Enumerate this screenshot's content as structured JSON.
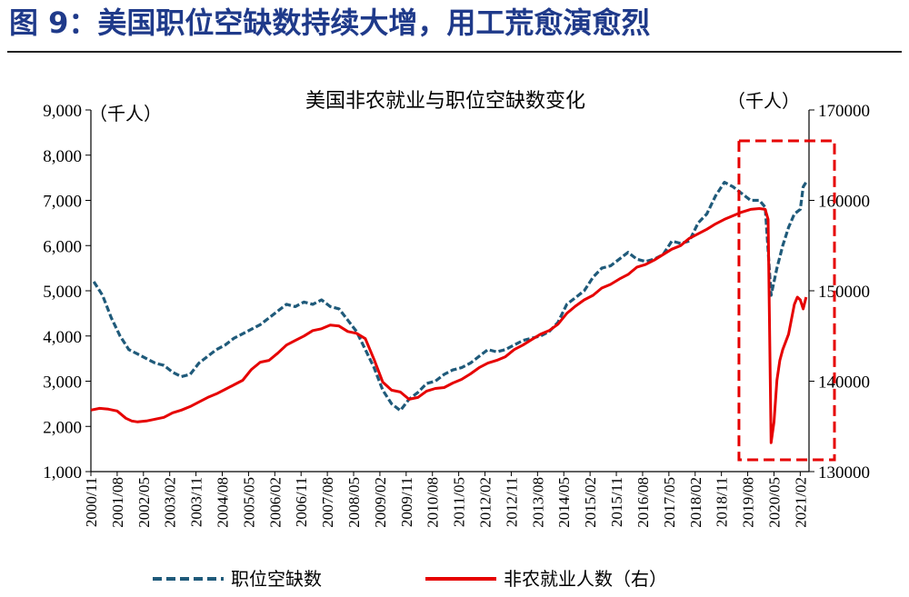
{
  "figure_title": "图 9：美国职位空缺数持续大增，用工荒愈演愈烈",
  "chart_data": {
    "type": "line",
    "title": "美国非农就业与职位空缺数变化",
    "left_unit": "（千人）",
    "right_unit": "（千人）",
    "left_axis": {
      "min": 1000,
      "max": 9000,
      "ticks": [
        "1,000",
        "2,000",
        "3,000",
        "4,000",
        "5,000",
        "6,000",
        "7,000",
        "8,000",
        "9,000"
      ]
    },
    "right_axis": {
      "min": 130000,
      "max": 170000,
      "ticks": [
        "130000",
        "140000",
        "150000",
        "160000",
        "170000"
      ]
    },
    "x_range": [
      "2000-11",
      "2021-05"
    ],
    "x_ticks": [
      "2000/11",
      "2001/08",
      "2002/05",
      "2003/02",
      "2003/11",
      "2004/08",
      "2005/05",
      "2006/02",
      "2006/11",
      "2007/08",
      "2008/05",
      "2009/02",
      "2009/11",
      "2010/08",
      "2011/05",
      "2012/02",
      "2012/11",
      "2013/08",
      "2014/05",
      "2015/02",
      "2015/11",
      "2016/08",
      "2017/05",
      "2018/02",
      "2018/11",
      "2019/08",
      "2020/05",
      "2021/02"
    ],
    "series": [
      {
        "name": "职位空缺数",
        "axis": "left",
        "style": "dashed",
        "color": "#1f5a7a",
        "points": [
          [
            "2000-12",
            5200
          ],
          [
            "2001-03",
            4900
          ],
          [
            "2001-06",
            4400
          ],
          [
            "2001-09",
            4000
          ],
          [
            "2001-12",
            3700
          ],
          [
            "2002-03",
            3600
          ],
          [
            "2002-06",
            3500
          ],
          [
            "2002-09",
            3400
          ],
          [
            "2002-12",
            3350
          ],
          [
            "2003-03",
            3200
          ],
          [
            "2003-06",
            3100
          ],
          [
            "2003-09",
            3150
          ],
          [
            "2003-12",
            3400
          ],
          [
            "2004-03",
            3550
          ],
          [
            "2004-06",
            3700
          ],
          [
            "2004-09",
            3800
          ],
          [
            "2004-12",
            3950
          ],
          [
            "2005-03",
            4050
          ],
          [
            "2005-06",
            4150
          ],
          [
            "2005-09",
            4250
          ],
          [
            "2005-12",
            4400
          ],
          [
            "2006-03",
            4550
          ],
          [
            "2006-06",
            4700
          ],
          [
            "2006-09",
            4650
          ],
          [
            "2006-12",
            4750
          ],
          [
            "2007-03",
            4700
          ],
          [
            "2007-06",
            4800
          ],
          [
            "2007-09",
            4650
          ],
          [
            "2007-12",
            4600
          ],
          [
            "2008-03",
            4350
          ],
          [
            "2008-06",
            4100
          ],
          [
            "2008-09",
            3700
          ],
          [
            "2008-12",
            3300
          ],
          [
            "2009-03",
            2800
          ],
          [
            "2009-06",
            2500
          ],
          [
            "2009-09",
            2350
          ],
          [
            "2009-12",
            2600
          ],
          [
            "2010-03",
            2750
          ],
          [
            "2010-06",
            2950
          ],
          [
            "2010-09",
            3000
          ],
          [
            "2010-12",
            3150
          ],
          [
            "2011-03",
            3250
          ],
          [
            "2011-06",
            3300
          ],
          [
            "2011-09",
            3400
          ],
          [
            "2011-12",
            3550
          ],
          [
            "2012-03",
            3700
          ],
          [
            "2012-06",
            3650
          ],
          [
            "2012-09",
            3700
          ],
          [
            "2012-12",
            3800
          ],
          [
            "2013-03",
            3900
          ],
          [
            "2013-06",
            3950
          ],
          [
            "2013-09",
            4000
          ],
          [
            "2013-12",
            4100
          ],
          [
            "2014-03",
            4300
          ],
          [
            "2014-06",
            4700
          ],
          [
            "2014-09",
            4850
          ],
          [
            "2014-12",
            5000
          ],
          [
            "2015-03",
            5300
          ],
          [
            "2015-06",
            5500
          ],
          [
            "2015-09",
            5550
          ],
          [
            "2015-12",
            5700
          ],
          [
            "2016-03",
            5850
          ],
          [
            "2016-06",
            5700
          ],
          [
            "2016-09",
            5650
          ],
          [
            "2016-12",
            5700
          ],
          [
            "2017-03",
            5800
          ],
          [
            "2017-06",
            6100
          ],
          [
            "2017-09",
            6050
          ],
          [
            "2017-12",
            6100
          ],
          [
            "2018-03",
            6500
          ],
          [
            "2018-06",
            6700
          ],
          [
            "2018-09",
            7100
          ],
          [
            "2018-12",
            7400
          ],
          [
            "2019-03",
            7300
          ],
          [
            "2019-06",
            7150
          ],
          [
            "2019-09",
            7000
          ],
          [
            "2019-12",
            7000
          ],
          [
            "2020-02",
            6850
          ],
          [
            "2020-04",
            4900
          ],
          [
            "2020-06",
            5500
          ],
          [
            "2020-08",
            6000
          ],
          [
            "2020-10",
            6400
          ],
          [
            "2020-12",
            6700
          ],
          [
            "2021-02",
            6800
          ],
          [
            "2021-03",
            7300
          ],
          [
            "2021-04",
            7400
          ]
        ]
      },
      {
        "name": "非农就业人数（右）",
        "axis": "right",
        "style": "solid",
        "color": "#e60000",
        "points": [
          [
            "2000-11",
            136800
          ],
          [
            "2001-02",
            137000
          ],
          [
            "2001-05",
            136900
          ],
          [
            "2001-08",
            136700
          ],
          [
            "2001-11",
            135900
          ],
          [
            "2002-01",
            135600
          ],
          [
            "2002-03",
            135500
          ],
          [
            "2002-06",
            135600
          ],
          [
            "2002-09",
            135800
          ],
          [
            "2002-12",
            136000
          ],
          [
            "2003-03",
            136500
          ],
          [
            "2003-06",
            136800
          ],
          [
            "2003-09",
            137200
          ],
          [
            "2003-12",
            137700
          ],
          [
            "2004-03",
            138200
          ],
          [
            "2004-06",
            138600
          ],
          [
            "2004-09",
            139100
          ],
          [
            "2004-12",
            139600
          ],
          [
            "2005-03",
            140100
          ],
          [
            "2005-06",
            141300
          ],
          [
            "2005-09",
            142100
          ],
          [
            "2005-12",
            142300
          ],
          [
            "2006-03",
            143100
          ],
          [
            "2006-06",
            144000
          ],
          [
            "2006-09",
            144500
          ],
          [
            "2006-12",
            145000
          ],
          [
            "2007-03",
            145600
          ],
          [
            "2007-06",
            145800
          ],
          [
            "2007-09",
            146200
          ],
          [
            "2007-12",
            146100
          ],
          [
            "2008-03",
            145500
          ],
          [
            "2008-06",
            145300
          ],
          [
            "2008-09",
            144700
          ],
          [
            "2008-12",
            142400
          ],
          [
            "2009-03",
            139900
          ],
          [
            "2009-06",
            139000
          ],
          [
            "2009-09",
            138800
          ],
          [
            "2009-12",
            138000
          ],
          [
            "2010-03",
            138200
          ],
          [
            "2010-06",
            138900
          ],
          [
            "2010-09",
            139200
          ],
          [
            "2010-12",
            139300
          ],
          [
            "2011-03",
            139800
          ],
          [
            "2011-06",
            140200
          ],
          [
            "2011-09",
            140800
          ],
          [
            "2011-12",
            141500
          ],
          [
            "2012-03",
            142000
          ],
          [
            "2012-06",
            142300
          ],
          [
            "2012-09",
            142700
          ],
          [
            "2012-12",
            143500
          ],
          [
            "2013-03",
            144000
          ],
          [
            "2013-06",
            144600
          ],
          [
            "2013-09",
            145200
          ],
          [
            "2013-12",
            145600
          ],
          [
            "2014-03",
            146300
          ],
          [
            "2014-06",
            147500
          ],
          [
            "2014-09",
            148300
          ],
          [
            "2014-12",
            149000
          ],
          [
            "2015-03",
            149500
          ],
          [
            "2015-06",
            150300
          ],
          [
            "2015-09",
            150700
          ],
          [
            "2015-12",
            151300
          ],
          [
            "2016-03",
            151800
          ],
          [
            "2016-06",
            152600
          ],
          [
            "2016-09",
            152900
          ],
          [
            "2016-12",
            153400
          ],
          [
            "2017-03",
            154000
          ],
          [
            "2017-06",
            154600
          ],
          [
            "2017-09",
            155000
          ],
          [
            "2017-12",
            155800
          ],
          [
            "2018-03",
            156300
          ],
          [
            "2018-06",
            156800
          ],
          [
            "2018-09",
            157400
          ],
          [
            "2018-12",
            157900
          ],
          [
            "2019-03",
            158300
          ],
          [
            "2019-06",
            158700
          ],
          [
            "2019-09",
            159000
          ],
          [
            "2019-12",
            159100
          ],
          [
            "2020-02",
            159000
          ],
          [
            "2020-03",
            157900
          ],
          [
            "2020-04",
            133200
          ],
          [
            "2020-05",
            135500
          ],
          [
            "2020-06",
            140100
          ],
          [
            "2020-07",
            142300
          ],
          [
            "2020-08",
            143500
          ],
          [
            "2020-10",
            145200
          ],
          [
            "2020-12",
            148500
          ],
          [
            "2021-01",
            149300
          ],
          [
            "2021-02",
            149000
          ],
          [
            "2021-03",
            148000
          ],
          [
            "2021-04",
            149300
          ]
        ]
      }
    ],
    "highlight": {
      "from": "2019-05",
      "to": "2021-05",
      "style": "red dashed box"
    }
  }
}
